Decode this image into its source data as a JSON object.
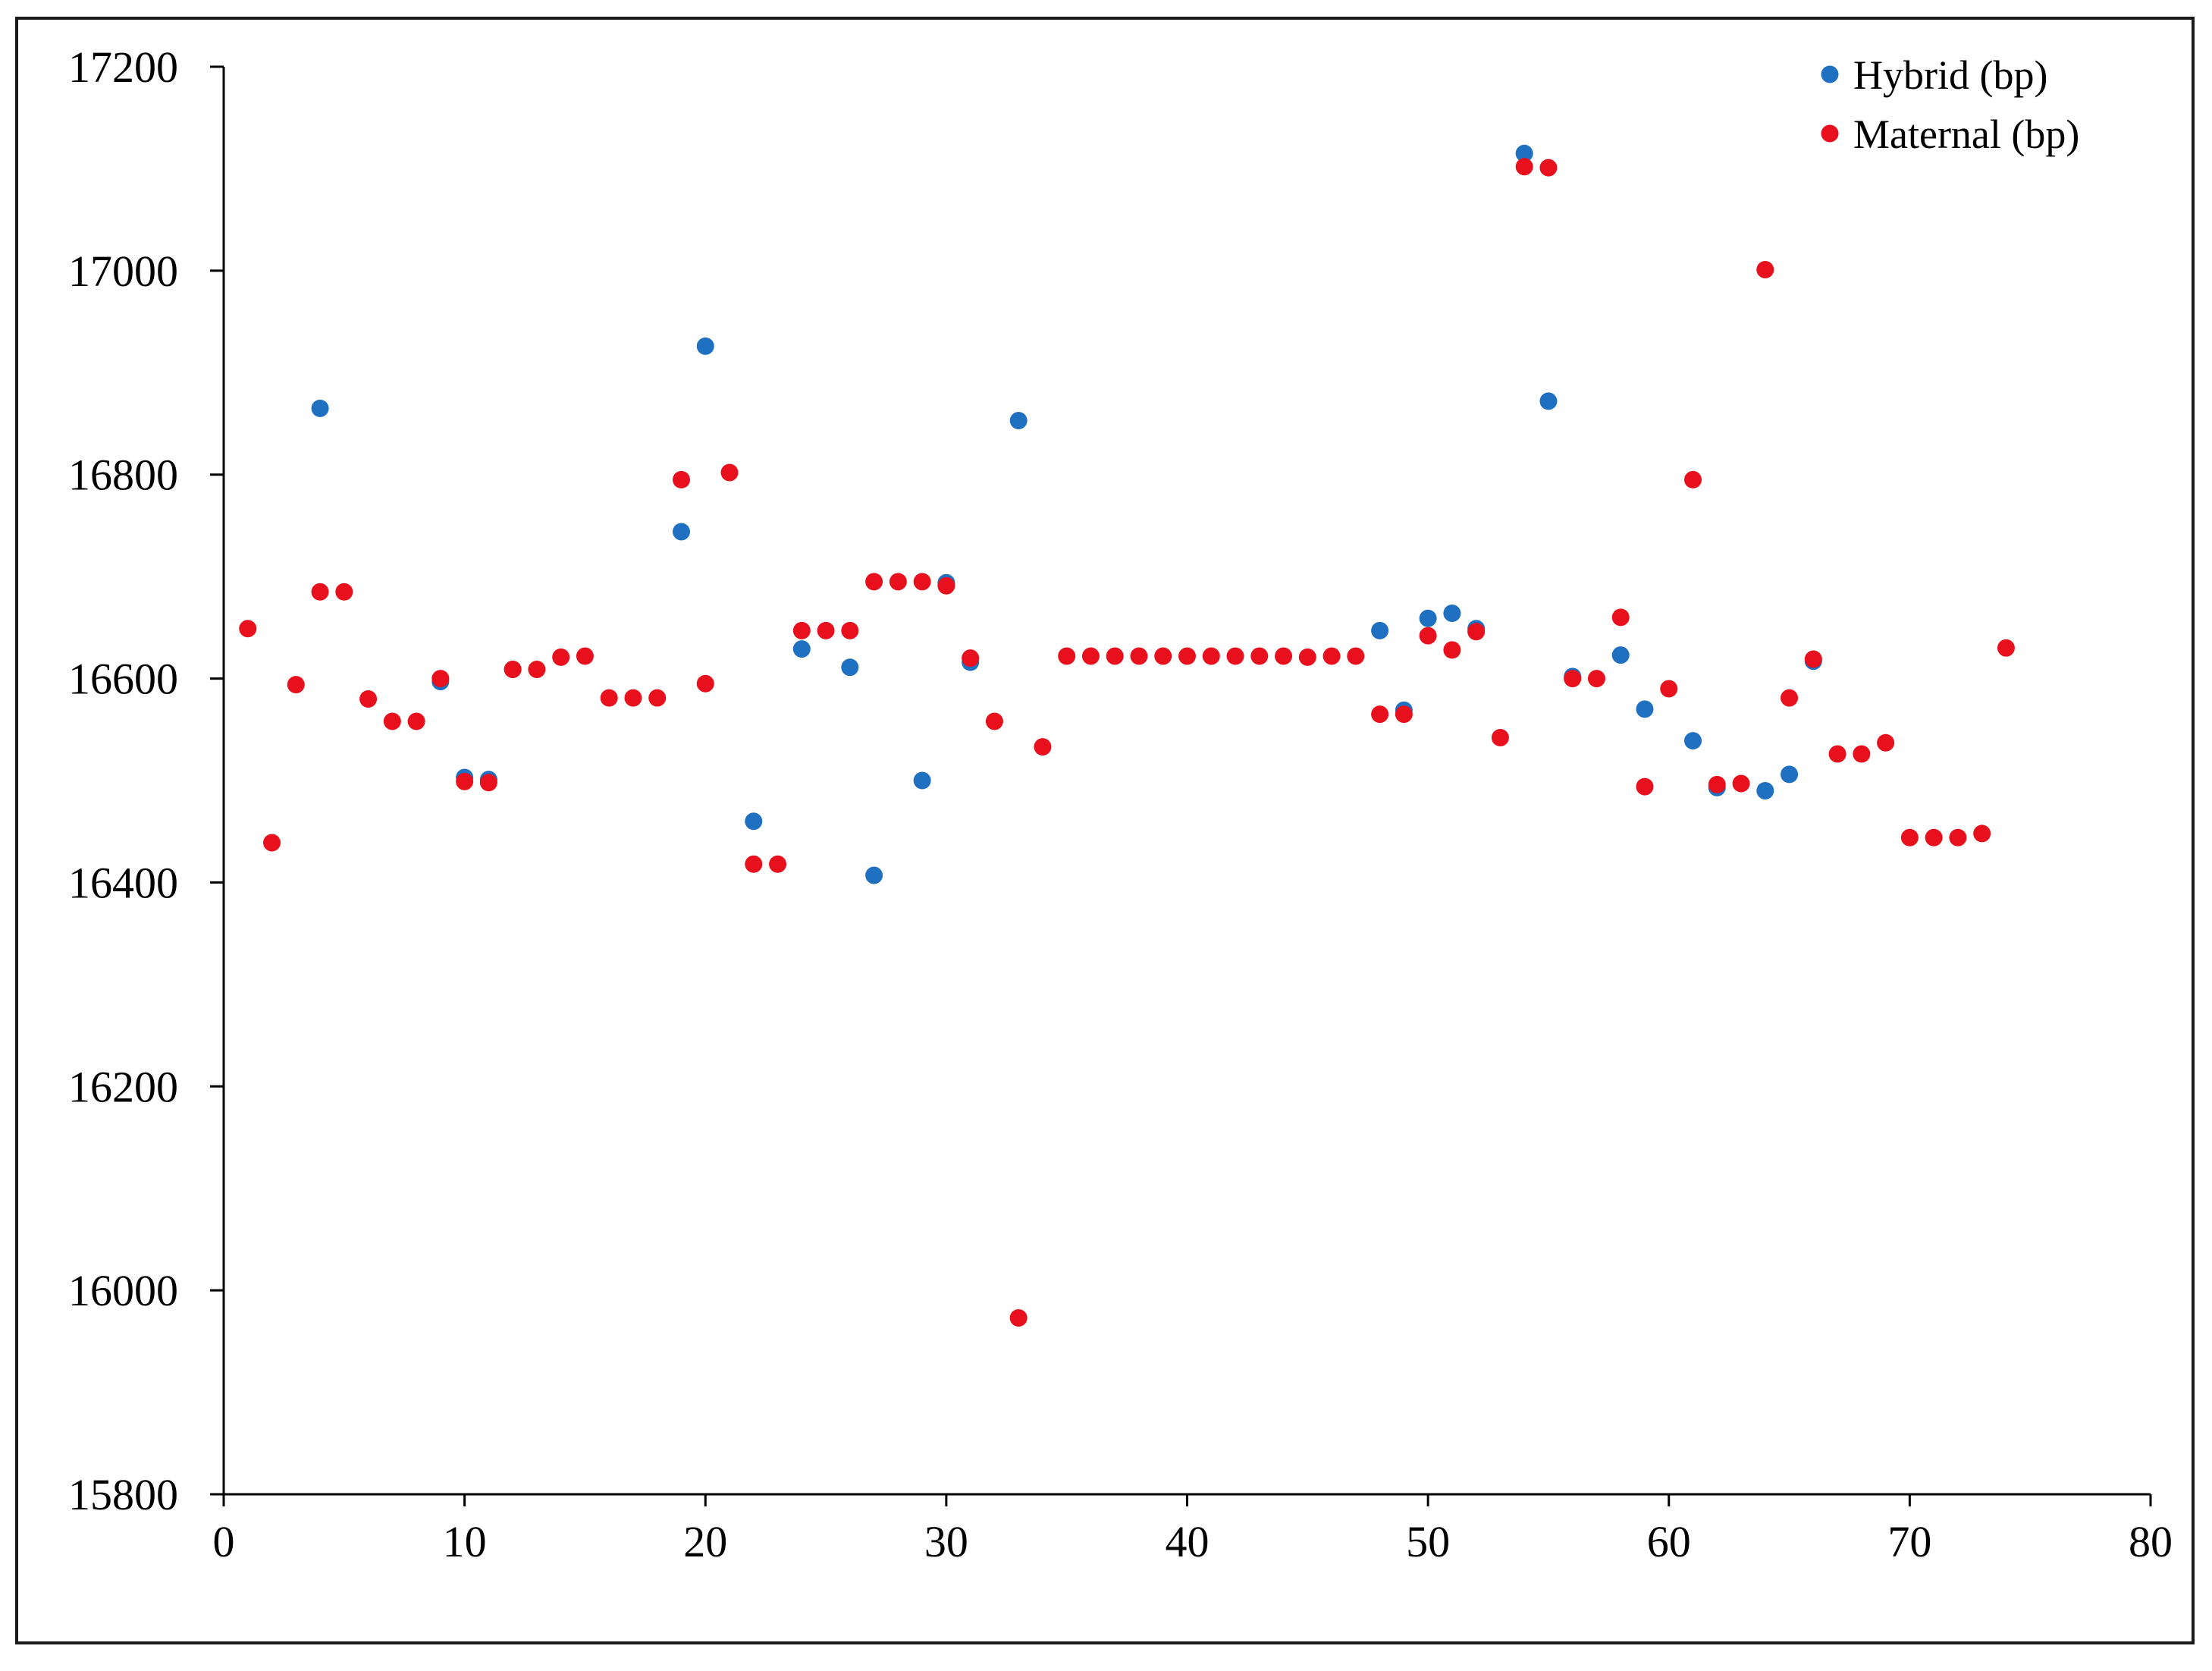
{
  "chart_data": {
    "type": "scatter",
    "title": "",
    "xlabel": "",
    "ylabel": "",
    "xlim": [
      0,
      80
    ],
    "ylim": [
      15800,
      17200
    ],
    "x_ticks": [
      0,
      10,
      20,
      30,
      40,
      50,
      60,
      70,
      80
    ],
    "y_ticks": [
      15800,
      16000,
      16200,
      16400,
      16600,
      16800,
      17000,
      17200
    ],
    "grid": false,
    "legend": "top-right",
    "series": [
      {
        "name": "Hybrid (bp)",
        "color": "#1f70c1",
        "x": [
          4,
          9,
          10,
          11,
          12,
          19,
          20,
          22,
          24,
          26,
          27,
          29,
          30,
          31,
          33,
          48,
          49,
          50,
          51,
          52,
          54,
          55,
          56,
          58,
          59,
          61,
          62,
          64,
          65,
          66
        ],
        "y": [
          16865,
          16597,
          16503,
          16501,
          16609,
          16744,
          16926,
          16460,
          16629,
          16611,
          16407,
          16500,
          16694,
          16616,
          16853,
          16647,
          16569,
          16659,
          16664,
          16649,
          17115,
          16872,
          16602,
          16623,
          16570,
          16539,
          16493,
          16490,
          16506,
          16617
        ]
      },
      {
        "name": "Maternal (bp)",
        "color": "#e8101d",
        "x": [
          1,
          2,
          3,
          4,
          5,
          6,
          7,
          8,
          9,
          10,
          11,
          12,
          13,
          14,
          15,
          16,
          17,
          18,
          19,
          20,
          21,
          22,
          23,
          24,
          25,
          26,
          27,
          28,
          29,
          30,
          31,
          32,
          33,
          34,
          35,
          36,
          37,
          38,
          39,
          40,
          41,
          42,
          43,
          44,
          45,
          46,
          47,
          48,
          49,
          50,
          51,
          52,
          53,
          54,
          55,
          56,
          57,
          58,
          59,
          60,
          61,
          62,
          63,
          64,
          65,
          66,
          67,
          68,
          69,
          70,
          71,
          72,
          73,
          74
        ],
        "y": [
          16649,
          16439,
          16594,
          16685,
          16685,
          16580,
          16558,
          16558,
          16600,
          16499,
          16498,
          16609,
          16609,
          16621,
          16622,
          16581,
          16581,
          16581,
          16795,
          16595,
          16802,
          16418,
          16418,
          16647,
          16647,
          16647,
          16695,
          16695,
          16695,
          16691,
          16620,
          16558,
          15973,
          16533,
          16622,
          16622,
          16622,
          16622,
          16622,
          16622,
          16622,
          16622,
          16622,
          16622,
          16621,
          16622,
          16622,
          16565,
          16565,
          16642,
          16628,
          16646,
          16542,
          17102,
          17101,
          16600,
          16600,
          16660,
          16494,
          16590,
          16795,
          16496,
          16497,
          17001,
          16581,
          16619,
          16526,
          16526,
          16537,
          16444,
          16444,
          16444,
          16448,
          16630
        ]
      }
    ]
  }
}
